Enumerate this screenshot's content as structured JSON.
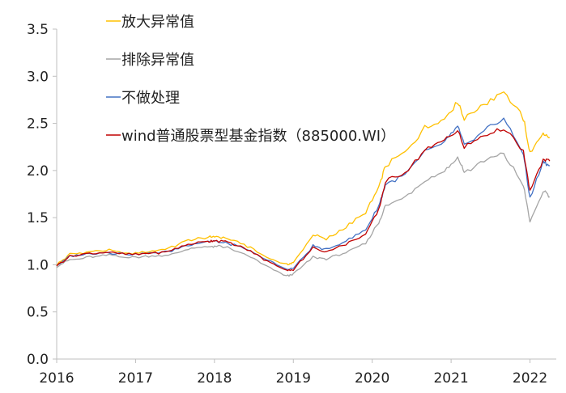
{
  "chart_data": {
    "type": "line",
    "title": "",
    "xlabel": "",
    "ylabel": "",
    "x_ticks": [
      "2016",
      "2017",
      "2018",
      "2019",
      "2020",
      "2021",
      "2022"
    ],
    "y_ticks": [
      "0.0",
      "0.5",
      "1.0",
      "1.5",
      "2.0",
      "2.5",
      "3.0",
      "3.5"
    ],
    "xlim": [
      "2016-01",
      "2022-04"
    ],
    "ylim": [
      0,
      3.5
    ],
    "grid": false,
    "legend_position": "top-left",
    "x": [
      "2016-01",
      "2016-03",
      "2016-06",
      "2016-09",
      "2016-12",
      "2017-03",
      "2017-06",
      "2017-09",
      "2017-12",
      "2018-01",
      "2018-03",
      "2018-06",
      "2018-09",
      "2018-12",
      "2019-01",
      "2019-04",
      "2019-06",
      "2019-09",
      "2019-12",
      "2020-02",
      "2020-03",
      "2020-06",
      "2020-09",
      "2020-12",
      "2021-02",
      "2021-03",
      "2021-06",
      "2021-09",
      "2021-12",
      "2022-01",
      "2022-03",
      "2022-04"
    ],
    "series": [
      {
        "name": "放大异常值",
        "color": "#FFC000",
        "values": [
          1.0,
          1.11,
          1.14,
          1.15,
          1.12,
          1.14,
          1.17,
          1.26,
          1.29,
          1.3,
          1.28,
          1.2,
          1.08,
          1.0,
          1.02,
          1.32,
          1.27,
          1.4,
          1.55,
          1.82,
          2.05,
          2.2,
          2.45,
          2.55,
          2.74,
          2.55,
          2.7,
          2.85,
          2.55,
          2.18,
          2.4,
          2.35
        ]
      },
      {
        "name": "排除异常值",
        "color": "#A5A5A5",
        "values": [
          0.98,
          1.05,
          1.08,
          1.1,
          1.08,
          1.09,
          1.1,
          1.17,
          1.19,
          1.2,
          1.18,
          1.1,
          0.98,
          0.88,
          0.9,
          1.08,
          1.06,
          1.13,
          1.22,
          1.45,
          1.62,
          1.72,
          1.9,
          2.0,
          2.14,
          1.98,
          2.1,
          2.18,
          1.85,
          1.45,
          1.78,
          1.72
        ]
      },
      {
        "name": "不做处理",
        "color": "#4472C4",
        "values": [
          0.99,
          1.09,
          1.12,
          1.13,
          1.11,
          1.12,
          1.14,
          1.21,
          1.25,
          1.25,
          1.23,
          1.16,
          1.05,
          0.95,
          0.96,
          1.2,
          1.16,
          1.25,
          1.37,
          1.62,
          1.85,
          1.95,
          2.2,
          2.3,
          2.47,
          2.26,
          2.42,
          2.55,
          2.18,
          1.7,
          2.1,
          2.05
        ]
      },
      {
        "name": "wind普通股票型基金指数（885000.WI）",
        "color": "#C00000",
        "values": [
          0.99,
          1.09,
          1.12,
          1.13,
          1.11,
          1.12,
          1.14,
          1.22,
          1.25,
          1.26,
          1.24,
          1.16,
          1.04,
          0.94,
          0.95,
          1.18,
          1.14,
          1.22,
          1.33,
          1.58,
          1.88,
          1.98,
          2.22,
          2.32,
          2.43,
          2.24,
          2.38,
          2.45,
          2.2,
          1.78,
          2.12,
          2.1
        ]
      }
    ]
  }
}
